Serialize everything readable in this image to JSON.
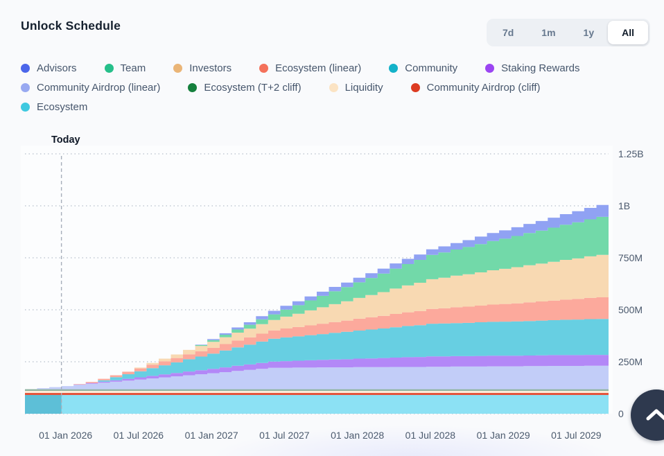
{
  "header": {
    "title": "Unlock Schedule"
  },
  "range_selector": {
    "options": [
      "7d",
      "1m",
      "1y",
      "All"
    ],
    "selected": "All",
    "selected_index": 3
  },
  "legend": {
    "rows": [
      [
        {
          "label": "Advisors",
          "color": "#4b66ea"
        },
        {
          "label": "Team",
          "color": "#26bf8a"
        },
        {
          "label": "Investors",
          "color": "#eab577"
        },
        {
          "label": "Ecosystem (linear)",
          "color": "#f4715b"
        },
        {
          "label": "Community",
          "color": "#14b2c9"
        },
        {
          "label": "Staking Rewards",
          "color": "#9b45f2"
        }
      ],
      [
        {
          "label": "Community Airdrop (linear)",
          "color": "#98a9f1"
        },
        {
          "label": "Ecosystem (T+2 cliff)",
          "color": "#15803d"
        },
        {
          "label": "Liquidity",
          "color": "#fbe3c3"
        },
        {
          "label": "Community Airdrop (cliff)",
          "color": "#dc3b22"
        }
      ],
      [
        {
          "label": "Ecosystem",
          "color": "#3fc9e0"
        }
      ]
    ]
  },
  "chart_data": {
    "type": "area",
    "variant": "stacked-step-area",
    "title": "Unlock Schedule",
    "today_label": "Today",
    "today_month_index": 3,
    "timeline": {
      "start_month": "2025-10",
      "months": 48,
      "step": "monthly"
    },
    "value_unit": "millions of tokens",
    "ylim": [
      0,
      1250
    ],
    "grid": "horizontal-dotted",
    "y_ticks": [
      {
        "value": 0,
        "label": "0"
      },
      {
        "value": 250,
        "label": "250M"
      },
      {
        "value": 500,
        "label": "500M"
      },
      {
        "value": 750,
        "label": "750M"
      },
      {
        "value": 1000,
        "label": "1B"
      },
      {
        "value": 1250,
        "label": "1.25B"
      }
    ],
    "x_ticks": [
      {
        "month_index": 3,
        "label": "01 Jan 2026"
      },
      {
        "month_index": 9,
        "label": "01 Jul 2026"
      },
      {
        "month_index": 15,
        "label": "01 Jan 2027"
      },
      {
        "month_index": 21,
        "label": "01 Jul 2027"
      },
      {
        "month_index": 27,
        "label": "01 Jan 2028"
      },
      {
        "month_index": 33,
        "label": "01 Jul 2028"
      },
      {
        "month_index": 39,
        "label": "01 Jan 2029"
      },
      {
        "month_index": 45,
        "label": "01 Jul 2029"
      }
    ],
    "stack_order": "bottom_to_top",
    "series": [
      {
        "id": "ecosystem",
        "name": "Ecosystem",
        "fill": "#8ce1f4",
        "past_fill": "#3fc6de",
        "constant": 90
      },
      {
        "id": "community-airdrop-cliff",
        "name": "Community Airdrop (cliff)",
        "fill": "#e4553d",
        "constant": 10
      },
      {
        "id": "liquidity",
        "name": "Liquidity",
        "fill": "#fbecd9",
        "constant": 10
      },
      {
        "id": "ecosystem-t2-cliff",
        "name": "Ecosystem (T+2 cliff)",
        "fill": "#8fb3a1",
        "constant": 8
      },
      {
        "id": "community-airdrop-linear",
        "name": "Community Airdrop (linear)",
        "fill": "#c2cdf8",
        "values": [
          0,
          5,
          10,
          15,
          21,
          26,
          31,
          36,
          41,
          46,
          52,
          57,
          62,
          67,
          72,
          77,
          82,
          88,
          93,
          98,
          103,
          103,
          104,
          104,
          105,
          105,
          105,
          106,
          106,
          106,
          107,
          107,
          107,
          108,
          108,
          109,
          109,
          109,
          110,
          110,
          110,
          111,
          111,
          112,
          112,
          112,
          113,
          113
        ]
      },
      {
        "id": "staking-rewards",
        "name": "Staking Rewards",
        "fill": "#b388f7",
        "values": [
          0,
          0,
          0,
          0,
          2,
          4,
          5,
          7,
          9,
          11,
          12,
          14,
          16,
          18,
          19,
          21,
          23,
          25,
          26,
          28,
          30,
          32,
          33,
          35,
          36,
          38,
          39,
          41,
          42,
          44,
          45,
          47,
          48,
          50,
          50,
          50,
          50,
          51,
          51,
          51,
          51,
          51,
          52,
          52,
          52,
          52,
          52,
          52
        ]
      },
      {
        "id": "community",
        "name": "Community",
        "fill": "#67cfe2",
        "values": [
          0,
          0,
          0,
          0,
          0,
          0,
          7,
          15,
          22,
          29,
          37,
          44,
          51,
          59,
          66,
          73,
          81,
          88,
          95,
          103,
          110,
          114,
          117,
          121,
          124,
          128,
          132,
          135,
          139,
          142,
          146,
          150,
          153,
          157,
          158,
          159,
          160,
          162,
          163,
          164,
          165,
          166,
          167,
          168,
          170,
          171,
          172,
          173
        ]
      },
      {
        "id": "ecosystem-linear",
        "name": "Ecosystem (linear)",
        "fill": "#fca99c",
        "values": [
          0,
          0,
          0,
          0,
          2,
          5,
          7,
          9,
          12,
          14,
          17,
          19,
          21,
          24,
          26,
          28,
          31,
          33,
          35,
          38,
          40,
          43,
          45,
          47,
          50,
          52,
          54,
          57,
          59,
          61,
          64,
          66,
          68,
          71,
          73,
          76,
          78,
          80,
          83,
          85,
          87,
          90,
          92,
          94,
          97,
          99,
          102,
          104
        ]
      },
      {
        "id": "investors",
        "name": "Investors",
        "fill": "#f8d9b2",
        "values": [
          0,
          0,
          0,
          0,
          0,
          0,
          0,
          0,
          0,
          4,
          8,
          13,
          17,
          21,
          25,
          29,
          33,
          38,
          42,
          46,
          50,
          57,
          64,
          72,
          79,
          86,
          93,
          100,
          107,
          114,
          122,
          129,
          136,
          143,
          147,
          152,
          156,
          160,
          165,
          169,
          174,
          178,
          182,
          187,
          191,
          195,
          200,
          204
        ]
      },
      {
        "id": "team",
        "name": "Team",
        "fill": "#72d9a9",
        "values": [
          0,
          0,
          0,
          0,
          0,
          0,
          0,
          0,
          0,
          0,
          0,
          0,
          0,
          0,
          4,
          8,
          12,
          15,
          19,
          23,
          27,
          34,
          41,
          48,
          55,
          62,
          68,
          75,
          82,
          89,
          96,
          103,
          110,
          117,
          122,
          126,
          131,
          136,
          141,
          145,
          150,
          155,
          159,
          164,
          169,
          174,
          178,
          183
        ]
      },
      {
        "id": "advisors",
        "name": "Advisors",
        "fill": "#90a2f3",
        "values": [
          0,
          0,
          0,
          0,
          0,
          0,
          0,
          0,
          0,
          0,
          0,
          0,
          0,
          0,
          2,
          5,
          7,
          10,
          12,
          15,
          17,
          18,
          19,
          19,
          20,
          21,
          22,
          22,
          23,
          24,
          25,
          25,
          26,
          27,
          29,
          31,
          33,
          36,
          38,
          40,
          42,
          44,
          46,
          48,
          51,
          53,
          55,
          57
        ]
      }
    ]
  },
  "scroll_top": {
    "icon": "chevron-up"
  }
}
